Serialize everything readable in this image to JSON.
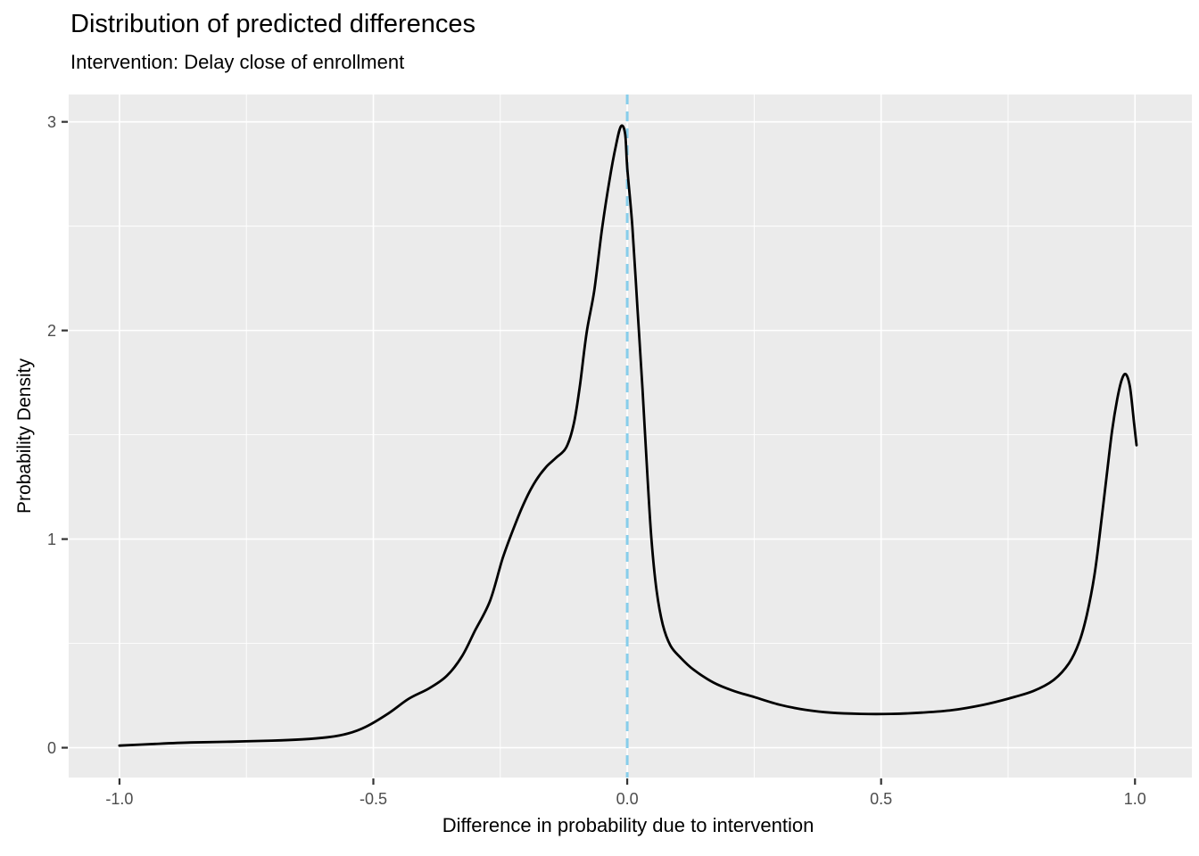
{
  "colors": {
    "panel_background": "#EBEBEB",
    "gridline": "#FFFFFF",
    "density_curve": "#000000",
    "reference_line": "#87CEEB",
    "tick_label": "#4D4D4D",
    "tick_mark": "#333333",
    "title_text": "#000000"
  },
  "chart_data": {
    "type": "line",
    "subtype": "density",
    "title": "Distribution of predicted differences",
    "subtitle": "Intervention: Delay close of enrollment",
    "xlabel": "Difference in probability due to intervention",
    "ylabel": "Probability Density",
    "xlim": [
      -1.1,
      1.112
    ],
    "ylim": [
      -0.143,
      3.131
    ],
    "grid": "major and minor white gridlines on grey panel",
    "legend_position": "none",
    "x_ticks": [
      {
        "value": -1.0,
        "label": "-1.0"
      },
      {
        "value": -0.5,
        "label": "-0.5"
      },
      {
        "value": 0.0,
        "label": "0.0"
      },
      {
        "value": 0.5,
        "label": "0.5"
      },
      {
        "value": 1.0,
        "label": "1.0"
      }
    ],
    "y_ticks": [
      {
        "value": 0,
        "label": "0"
      },
      {
        "value": 1,
        "label": "1"
      },
      {
        "value": 2,
        "label": "2"
      },
      {
        "value": 3,
        "label": "3"
      }
    ],
    "x_minor_breaks": [
      -0.75,
      -0.25,
      0.25,
      0.75
    ],
    "y_minor_breaks": [
      0.5,
      1.5,
      2.5
    ],
    "vline": {
      "x": 0.0,
      "linetype": "dashed",
      "color": "#87CEEB"
    },
    "series": [
      {
        "name": "density-of-predicted-differences",
        "color": "#000000",
        "points": [
          [
            -1.0,
            0.01
          ],
          [
            -0.93,
            0.018
          ],
          [
            -0.86,
            0.025
          ],
          [
            -0.78,
            0.029
          ],
          [
            -0.7,
            0.034
          ],
          [
            -0.64,
            0.04
          ],
          [
            -0.59,
            0.05
          ],
          [
            -0.55,
            0.068
          ],
          [
            -0.515,
            0.1
          ],
          [
            -0.47,
            0.165
          ],
          [
            -0.43,
            0.235
          ],
          [
            -0.39,
            0.285
          ],
          [
            -0.355,
            0.345
          ],
          [
            -0.325,
            0.44
          ],
          [
            -0.3,
            0.56
          ],
          [
            -0.27,
            0.705
          ],
          [
            -0.245,
            0.91
          ],
          [
            -0.22,
            1.075
          ],
          [
            -0.2,
            1.19
          ],
          [
            -0.18,
            1.28
          ],
          [
            -0.16,
            1.345
          ],
          [
            -0.14,
            1.39
          ],
          [
            -0.12,
            1.44
          ],
          [
            -0.105,
            1.555
          ],
          [
            -0.093,
            1.74
          ],
          [
            -0.08,
            1.99
          ],
          [
            -0.065,
            2.19
          ],
          [
            -0.05,
            2.48
          ],
          [
            -0.035,
            2.72
          ],
          [
            -0.022,
            2.89
          ],
          [
            -0.012,
            2.98
          ],
          [
            -0.004,
            2.94
          ],
          [
            0.0,
            2.78
          ],
          [
            0.01,
            2.5
          ],
          [
            0.02,
            2.11
          ],
          [
            0.03,
            1.72
          ],
          [
            0.04,
            1.29
          ],
          [
            0.048,
            0.99
          ],
          [
            0.058,
            0.75
          ],
          [
            0.07,
            0.59
          ],
          [
            0.085,
            0.49
          ],
          [
            0.105,
            0.432
          ],
          [
            0.13,
            0.375
          ],
          [
            0.17,
            0.312
          ],
          [
            0.21,
            0.272
          ],
          [
            0.25,
            0.243
          ],
          [
            0.3,
            0.206
          ],
          [
            0.35,
            0.182
          ],
          [
            0.4,
            0.168
          ],
          [
            0.46,
            0.162
          ],
          [
            0.52,
            0.162
          ],
          [
            0.58,
            0.168
          ],
          [
            0.64,
            0.18
          ],
          [
            0.7,
            0.205
          ],
          [
            0.75,
            0.235
          ],
          [
            0.8,
            0.272
          ],
          [
            0.84,
            0.325
          ],
          [
            0.87,
            0.405
          ],
          [
            0.89,
            0.505
          ],
          [
            0.905,
            0.635
          ],
          [
            0.92,
            0.825
          ],
          [
            0.932,
            1.05
          ],
          [
            0.944,
            1.3
          ],
          [
            0.955,
            1.52
          ],
          [
            0.965,
            1.67
          ],
          [
            0.974,
            1.765
          ],
          [
            0.982,
            1.79
          ],
          [
            0.99,
            1.73
          ],
          [
            0.998,
            1.56
          ],
          [
            1.003,
            1.45
          ]
        ]
      }
    ]
  }
}
